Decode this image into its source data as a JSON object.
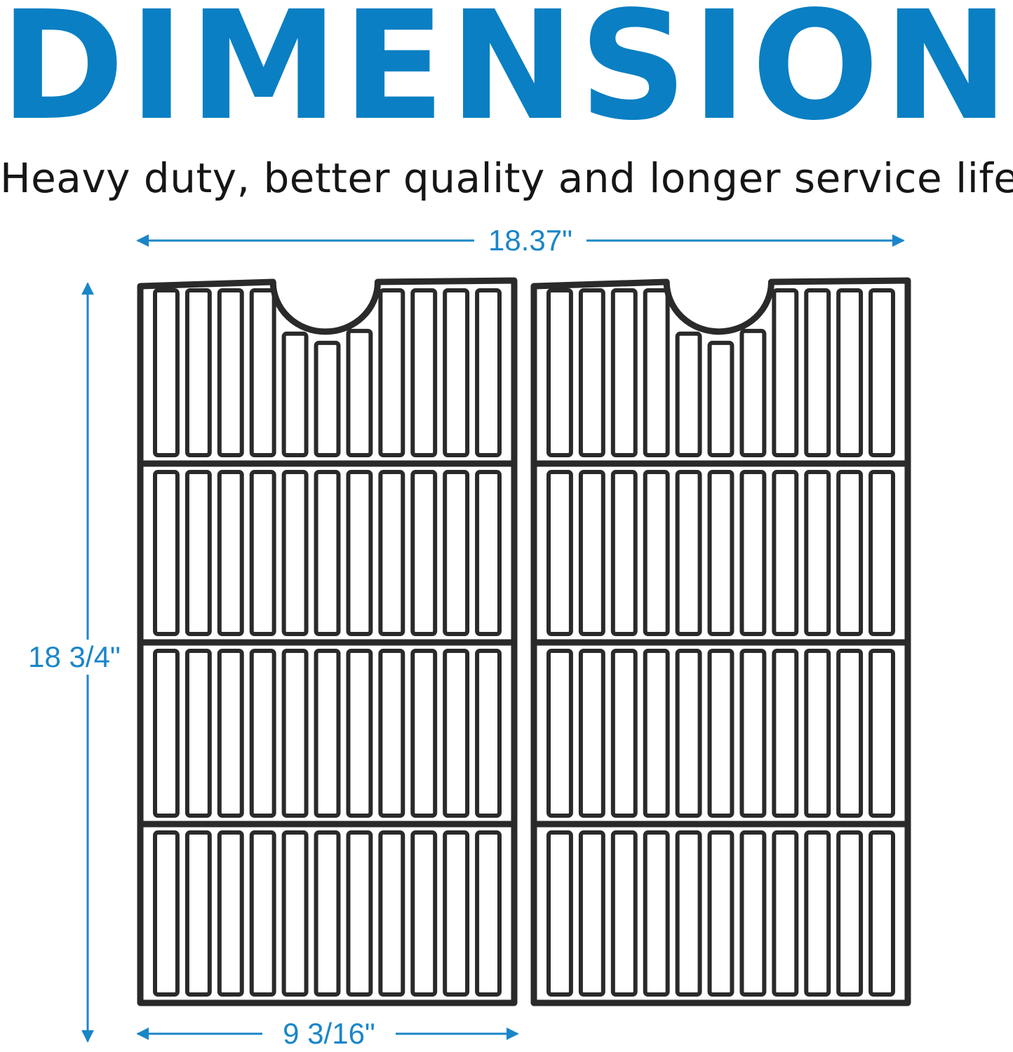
{
  "header": {
    "title": "DIMENSION",
    "subtitle": "Heavy duty, better quality and longer service life"
  },
  "dimensions": {
    "total_width": "18.37\"",
    "height": "18 3/4\"",
    "single_width": "9 3/16\""
  },
  "product": {
    "grate_count": 2,
    "bars_per_grate": 11,
    "bar_segments_per_column": 4
  },
  "colors": {
    "accent": "#0a7fc3",
    "dimension": "#1a86c8",
    "text": "#161616",
    "grate": "#2a2a2a"
  }
}
